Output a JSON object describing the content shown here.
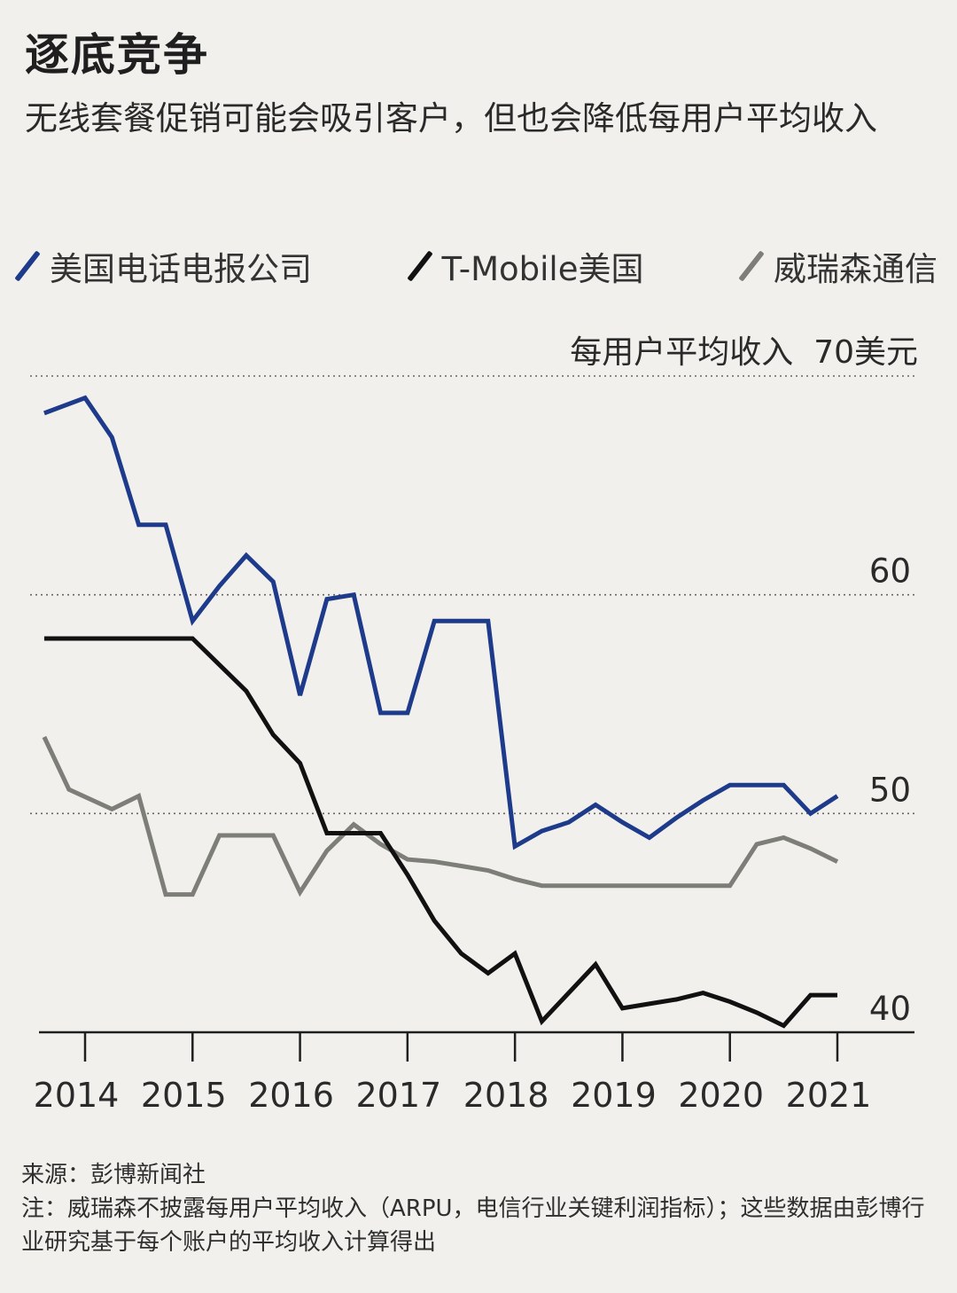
{
  "header": {
    "title": "逐底竞争",
    "subtitle": "无线套餐促销可能会吸引客户，但也会降低每用户平均收入"
  },
  "legend": [
    {
      "name": "美国电话电报公司",
      "color": "#1d3b8a"
    },
    {
      "name": "T-Mobile美国",
      "color": "#111111"
    },
    {
      "name": "威瑞森通信",
      "color": "#7e7e78"
    }
  ],
  "footer": {
    "source": "来源：彭博新闻社",
    "note": "注：威瑞森不披露每用户平均收入（ARPU，电信行业关键利润指标）；这些数据由彭博行业研究基于每个账户的平均收入计算得出"
  },
  "chart_data": {
    "type": "line",
    "ylabel": "每用户平均收入",
    "ylim": [
      40,
      70
    ],
    "yticks": [
      {
        "value": 70,
        "label": "70美元"
      },
      {
        "value": 60,
        "label": "60"
      },
      {
        "value": 50,
        "label": "50"
      },
      {
        "value": 40,
        "label": "40"
      }
    ],
    "xticks": [
      {
        "value": 2014.25,
        "label": "2014"
      },
      {
        "value": 2015.25,
        "label": "2015"
      },
      {
        "value": 2016.25,
        "label": "2016"
      },
      {
        "value": 2017.25,
        "label": "2017"
      },
      {
        "value": 2018.25,
        "label": "2018"
      },
      {
        "value": 2019.25,
        "label": "2019"
      },
      {
        "value": 2020.25,
        "label": "2020"
      },
      {
        "value": 2021.25,
        "label": "2021"
      }
    ],
    "xlim": [
      2013.75,
      2021.5
    ],
    "grid": true,
    "legend_position": "top",
    "series": [
      {
        "name": "美国电话电报公司",
        "color": "#1d3b8a",
        "x": [
          2013.87,
          2014.25,
          2014.5,
          2014.75,
          2015.0,
          2015.25,
          2015.5,
          2015.75,
          2016.0,
          2016.25,
          2016.5,
          2016.75,
          2017.0,
          2017.25,
          2017.5,
          2017.75,
          2018.0,
          2018.25,
          2018.5,
          2018.75,
          2019.0,
          2019.25,
          2019.5,
          2019.75,
          2020.0,
          2020.25,
          2020.5,
          2020.75,
          2021.0,
          2021.25
        ],
        "y": [
          68.3,
          69.0,
          67.2,
          63.2,
          63.2,
          58.8,
          60.4,
          61.8,
          60.6,
          55.4,
          59.8,
          60.0,
          54.6,
          54.6,
          58.8,
          58.8,
          58.8,
          48.5,
          49.2,
          49.6,
          50.4,
          49.6,
          48.9,
          49.8,
          50.6,
          51.3,
          51.3,
          51.3,
          50.0,
          50.8
        ]
      },
      {
        "name": "T-Mobile美国",
        "color": "#111111",
        "x": [
          2013.87,
          2014.5,
          2015.0,
          2015.25,
          2015.75,
          2016.0,
          2016.25,
          2016.5,
          2016.75,
          2017.0,
          2017.25,
          2017.5,
          2017.75,
          2018.0,
          2018.25,
          2018.5,
          2018.75,
          2019.0,
          2019.25,
          2019.5,
          2019.75,
          2020.0,
          2020.25,
          2020.5,
          2020.75,
          2021.0,
          2021.25
        ],
        "y": [
          58.0,
          58.0,
          58.0,
          58.0,
          55.6,
          53.6,
          52.3,
          49.1,
          49.1,
          49.1,
          47.2,
          45.1,
          43.6,
          42.7,
          43.6,
          40.5,
          41.8,
          43.1,
          41.1,
          41.3,
          41.5,
          41.8,
          41.4,
          40.9,
          40.3,
          41.7,
          41.7
        ]
      },
      {
        "name": "威瑞森通信",
        "color": "#7e7e78",
        "x": [
          2013.87,
          2014.1,
          2014.5,
          2014.75,
          2015.0,
          2015.25,
          2015.5,
          2015.75,
          2016.0,
          2016.25,
          2016.5,
          2016.75,
          2017.0,
          2017.25,
          2017.5,
          2017.75,
          2018.0,
          2018.25,
          2018.5,
          2018.75,
          2019.0,
          2019.25,
          2019.5,
          2019.75,
          2020.0,
          2020.25,
          2020.5,
          2020.75,
          2021.0,
          2021.25
        ],
        "y": [
          53.5,
          51.1,
          50.2,
          50.8,
          46.3,
          46.3,
          49.0,
          49.0,
          49.0,
          46.4,
          48.3,
          49.5,
          48.6,
          47.9,
          47.8,
          47.6,
          47.4,
          47.0,
          46.7,
          46.7,
          46.7,
          46.7,
          46.7,
          46.7,
          46.7,
          46.7,
          48.6,
          48.9,
          48.4,
          47.8
        ]
      }
    ]
  }
}
